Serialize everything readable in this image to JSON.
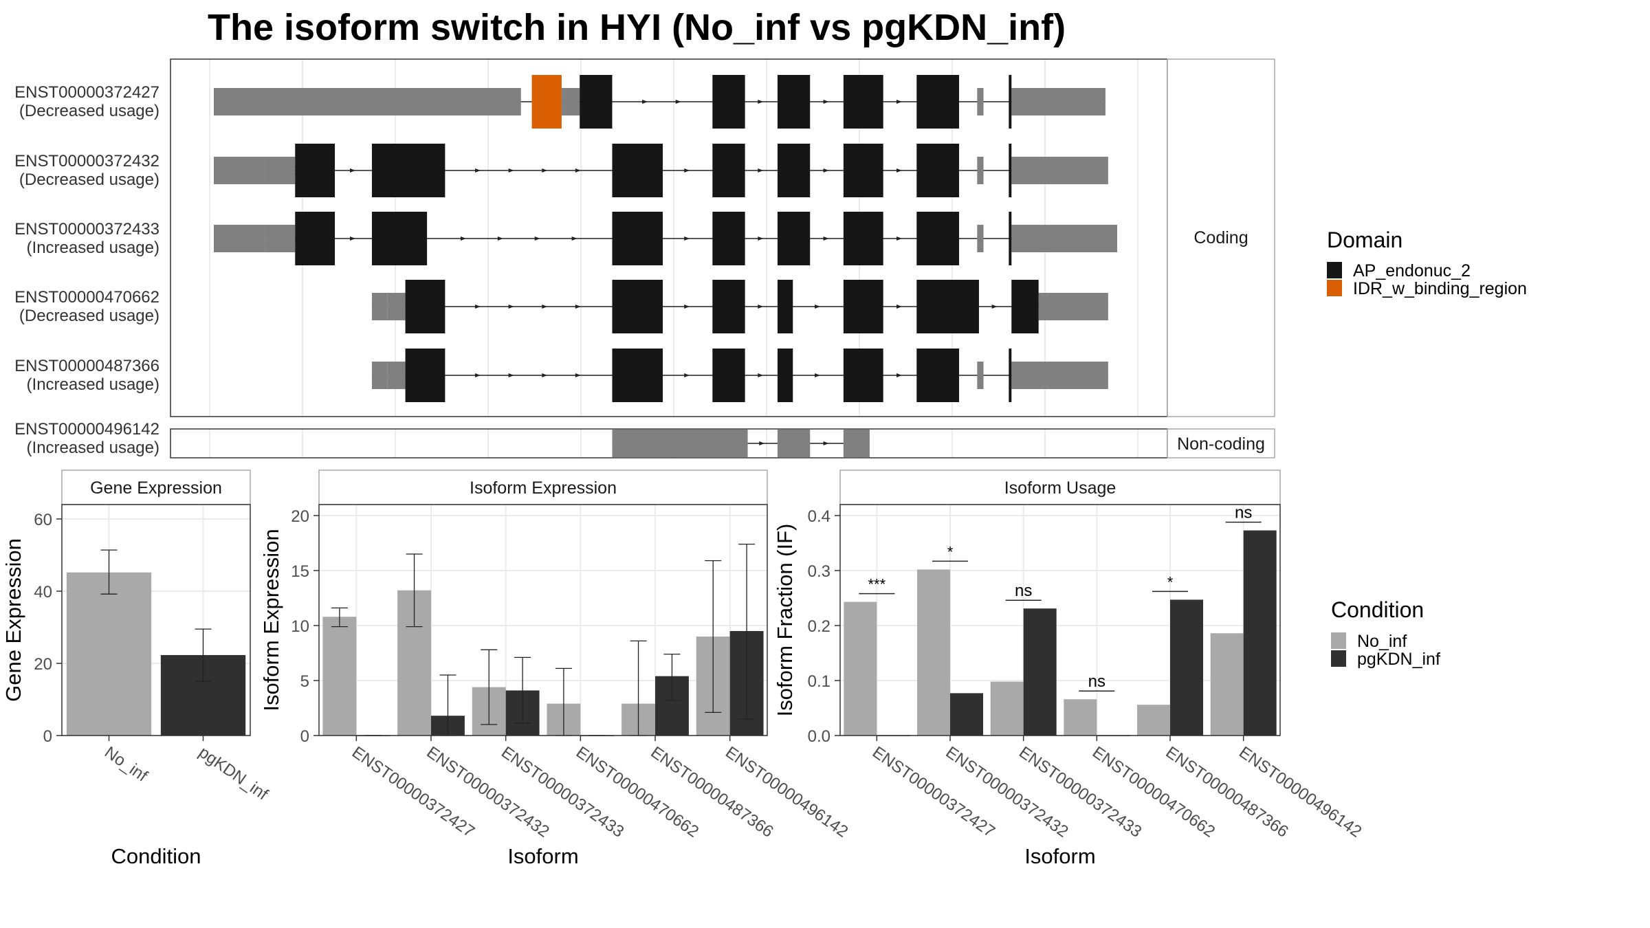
{
  "title": "The isoform switch in HYI (No_inf vs pgKDN_inf)",
  "colors": {
    "utr": "#808080",
    "domain_ap": "#161616",
    "domain_idr": "#d95f02",
    "no_inf": "#a9a9a9",
    "pgkdn_inf": "#303030",
    "grid": "#ebebeb",
    "panel_border": "#333333",
    "strip_border": "#a8a8a8",
    "strip_fill": "#ffffff"
  },
  "chart_data": [
    {
      "type": "gene_structure",
      "facets": [
        "Coding",
        "Non-coding"
      ],
      "transcripts": [
        {
          "id": "ENST00000372427",
          "usage": "(Decreased usage)",
          "facet": "Coding",
          "utr": [
            [
              0.0,
              0.34
            ],
            [
              0.385,
              0.405
            ],
            [
              0.845,
              0.852
            ],
            [
              0.883,
              0.987
            ]
          ],
          "cds": [
            [
              0.405,
              0.441
            ],
            [
              0.552,
              0.588
            ],
            [
              0.624,
              0.66
            ],
            [
              0.697,
              0.741
            ],
            [
              0.778,
              0.825
            ],
            [
              0.88,
              0.883
            ]
          ],
          "idr": [
            [
              0.352,
              0.385
            ]
          ]
        },
        {
          "id": "ENST00000372432",
          "usage": "(Decreased usage)",
          "facet": "Coding",
          "utr": [
            [
              0.0,
              0.057
            ],
            [
              0.057,
              0.09
            ],
            [
              0.845,
              0.852
            ],
            [
              0.883,
              0.99
            ]
          ],
          "cds": [
            [
              0.09,
              0.134
            ],
            [
              0.175,
              0.256
            ],
            [
              0.441,
              0.497
            ],
            [
              0.552,
              0.588
            ],
            [
              0.624,
              0.66
            ],
            [
              0.697,
              0.741
            ],
            [
              0.778,
              0.825
            ],
            [
              0.88,
              0.883
            ]
          ],
          "idr": []
        },
        {
          "id": "ENST00000372433",
          "usage": "(Increased usage)",
          "facet": "Coding",
          "utr": [
            [
              0.0,
              0.057
            ],
            [
              0.057,
              0.09
            ],
            [
              0.845,
              0.852
            ],
            [
              0.883,
              1.0
            ]
          ],
          "cds": [
            [
              0.09,
              0.134
            ],
            [
              0.175,
              0.236
            ],
            [
              0.441,
              0.497
            ],
            [
              0.552,
              0.588
            ],
            [
              0.624,
              0.66
            ],
            [
              0.697,
              0.741
            ],
            [
              0.778,
              0.825
            ],
            [
              0.88,
              0.883
            ]
          ],
          "idr": []
        },
        {
          "id": "ENST00000470662",
          "usage": "(Decreased usage)",
          "facet": "Coding",
          "utr": [
            [
              0.175,
              0.192
            ],
            [
              0.192,
              0.212
            ],
            [
              0.913,
              0.99
            ]
          ],
          "cds": [
            [
              0.212,
              0.256
            ],
            [
              0.441,
              0.497
            ],
            [
              0.552,
              0.588
            ],
            [
              0.624,
              0.641
            ],
            [
              0.697,
              0.741
            ],
            [
              0.778,
              0.847
            ],
            [
              0.883,
              0.913
            ]
          ],
          "idr": []
        },
        {
          "id": "ENST00000487366",
          "usage": "(Increased usage)",
          "facet": "Coding",
          "utr": [
            [
              0.175,
              0.192
            ],
            [
              0.192,
              0.212
            ],
            [
              0.845,
              0.852
            ],
            [
              0.883,
              0.99
            ]
          ],
          "cds": [
            [
              0.212,
              0.256
            ],
            [
              0.441,
              0.497
            ],
            [
              0.552,
              0.588
            ],
            [
              0.624,
              0.641
            ],
            [
              0.697,
              0.741
            ],
            [
              0.778,
              0.825
            ],
            [
              0.88,
              0.883
            ]
          ],
          "idr": []
        },
        {
          "id": "ENST00000496142",
          "usage": "(Increased usage)",
          "facet": "Non-coding",
          "utr": [
            [
              0.441,
              0.591
            ],
            [
              0.624,
              0.66
            ],
            [
              0.697,
              0.726
            ]
          ],
          "cds": [],
          "idr": []
        }
      ],
      "legend": {
        "title": "Domain",
        "entries": [
          {
            "label": "AP_endonuc_2",
            "color": "#161616"
          },
          {
            "label": "IDR_w_binding_region",
            "color": "#d95f02"
          }
        ]
      }
    },
    {
      "type": "bar",
      "strip": "Gene Expression",
      "xlabel": "Condition",
      "ylabel": "Gene Expression",
      "categories": [
        "No_inf",
        "pgKDN_inf"
      ],
      "values": [
        45.2,
        22.3
      ],
      "errors": [
        [
          39.2,
          51.4
        ],
        [
          15.0,
          29.5
        ]
      ],
      "ylim": [
        0,
        64
      ],
      "yticks": [
        0,
        20,
        40,
        60
      ]
    },
    {
      "type": "bar",
      "strip": "Isoform Expression",
      "xlabel": "Isoform",
      "ylabel": "Isoform Expression",
      "categories": [
        "ENST00000372427",
        "ENST00000372432",
        "ENST00000372433",
        "ENST00000470662",
        "ENST00000487366",
        "ENST00000496142"
      ],
      "series": [
        {
          "name": "No_inf",
          "values": [
            10.8,
            13.2,
            4.4,
            2.9,
            2.9,
            9.0
          ],
          "errors": [
            [
              9.9,
              11.6
            ],
            [
              9.9,
              16.5
            ],
            [
              1.0,
              7.8
            ],
            [
              0.0,
              6.1
            ],
            [
              0.0,
              8.6
            ],
            [
              2.1,
              15.9
            ]
          ]
        },
        {
          "name": "pgKDN_inf",
          "values": [
            0.0,
            1.8,
            4.1,
            0.0,
            5.4,
            9.5
          ],
          "errors": [
            [
              0.0,
              0.0
            ],
            [
              0.0,
              5.5
            ],
            [
              1.1,
              7.1
            ],
            [
              0.0,
              0.0
            ],
            [
              3.2,
              7.4
            ],
            [
              1.5,
              17.4
            ]
          ]
        }
      ],
      "ylim": [
        0,
        21
      ],
      "yticks": [
        0,
        5,
        10,
        15,
        20
      ]
    },
    {
      "type": "bar",
      "strip": "Isoform Usage",
      "xlabel": "Isoform",
      "ylabel": "Isoform Fraction (IF)",
      "categories": [
        "ENST00000372427",
        "ENST00000372432",
        "ENST00000372433",
        "ENST00000470662",
        "ENST00000487366",
        "ENST00000496142"
      ],
      "series": [
        {
          "name": "No_inf",
          "values": [
            0.243,
            0.302,
            0.098,
            0.066,
            0.056,
            0.186
          ]
        },
        {
          "name": "pgKDN_inf",
          "values": [
            0.0,
            0.077,
            0.231,
            0.0,
            0.247,
            0.373
          ]
        }
      ],
      "significance": [
        "***",
        "*",
        "ns",
        "ns",
        "*",
        "ns"
      ],
      "ylim": [
        0,
        0.42
      ],
      "yticks": [
        0.0,
        0.1,
        0.2,
        0.3,
        0.4
      ],
      "legend": {
        "title": "Condition",
        "entries": [
          {
            "label": "No_inf",
            "color": "#a9a9a9"
          },
          {
            "label": "pgKDN_inf",
            "color": "#303030"
          }
        ]
      }
    }
  ]
}
